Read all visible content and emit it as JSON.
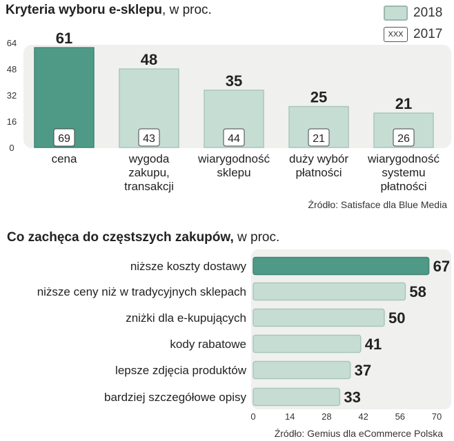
{
  "charts": [
    {
      "title_bold": "Kryteria wyboru e-sklepu",
      "title_rest": ", w proc.",
      "source": "Źródło: Satisface dla Blue Media",
      "legend": {
        "y2018": "2018",
        "y2017_marker": "XXX",
        "y2017": "2017"
      }
    },
    {
      "title_bold": "Co zachęca do częstszych zakupów,",
      "title_rest": " w proc.",
      "source": "Źródło: Gemius dla eCommerce Polska"
    }
  ],
  "chart_data": [
    {
      "type": "bar",
      "orientation": "vertical",
      "categories": [
        [
          "cena"
        ],
        [
          "wygoda",
          "zakupu,",
          "transakcji"
        ],
        [
          "wiarygodność",
          "sklepu"
        ],
        [
          "duży wybór",
          "płatności"
        ],
        [
          "wiarygodność",
          "systemu",
          "płatności"
        ]
      ],
      "series": [
        {
          "name": "2018",
          "values": [
            61,
            48,
            35,
            25,
            21
          ]
        },
        {
          "name": "2017",
          "values": [
            69,
            43,
            44,
            21,
            26
          ]
        }
      ],
      "yticks": [
        0,
        16,
        32,
        48,
        64
      ],
      "ylim": [
        0,
        64
      ],
      "highlight_color": "#4e9a87",
      "bar_color": "#c6ddd4",
      "panel_color": "#f0f0ee"
    },
    {
      "type": "bar",
      "orientation": "horizontal",
      "categories": [
        "niższe koszty dostawy",
        "niższe ceny niż w tradycyjnych sklepach",
        "zniżki dla e-kupujących",
        "kody rabatowe",
        "lepsze zdjęcia produktów",
        "bardziej szczegółowe opisy"
      ],
      "values": [
        67,
        58,
        50,
        41,
        37,
        33
      ],
      "xticks": [
        0,
        14,
        28,
        42,
        56,
        70
      ],
      "xlim": [
        0,
        70
      ],
      "highlight_color": "#4e9a87",
      "bar_color": "#c6ddd4",
      "panel_color": "#f0f0ee"
    }
  ]
}
